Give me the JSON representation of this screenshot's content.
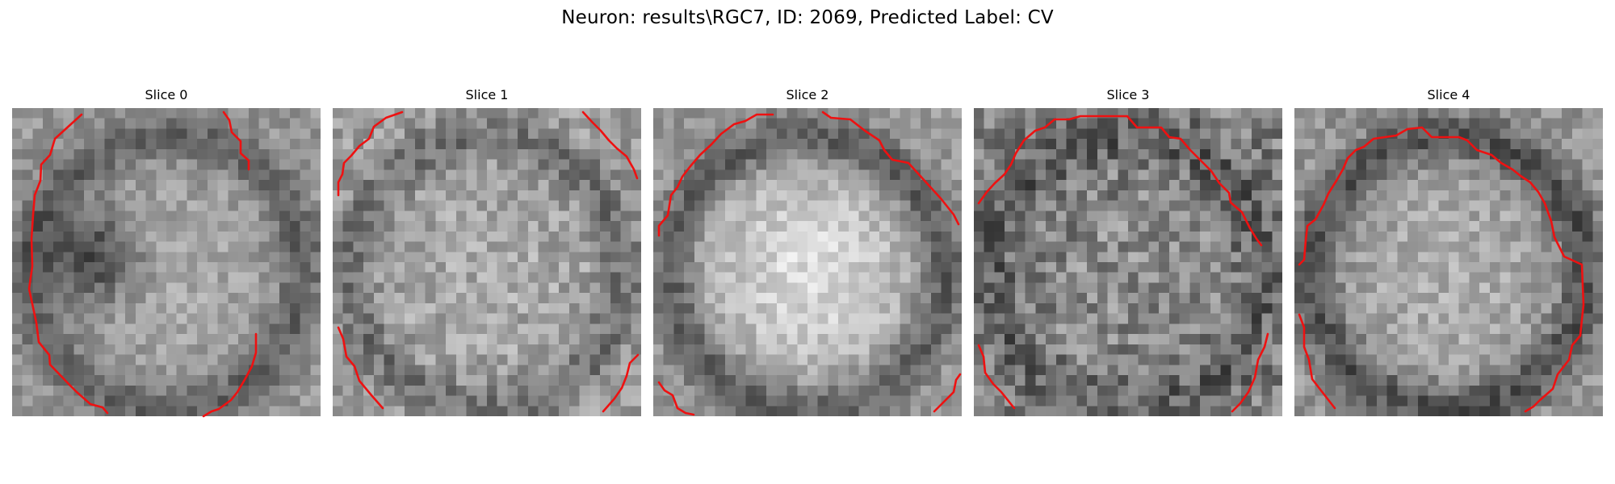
{
  "figure": {
    "title": "Neuron: results\\RGC7, ID: 2069, Predicted Label: CV"
  },
  "colors": {
    "contour": "#ee1111",
    "background": "#ffffff"
  },
  "slices": [
    {
      "label": "Slice 0"
    },
    {
      "label": "Slice 1"
    },
    {
      "label": "Slice 2"
    },
    {
      "label": "Slice 3"
    },
    {
      "label": "Slice 4"
    }
  ]
}
